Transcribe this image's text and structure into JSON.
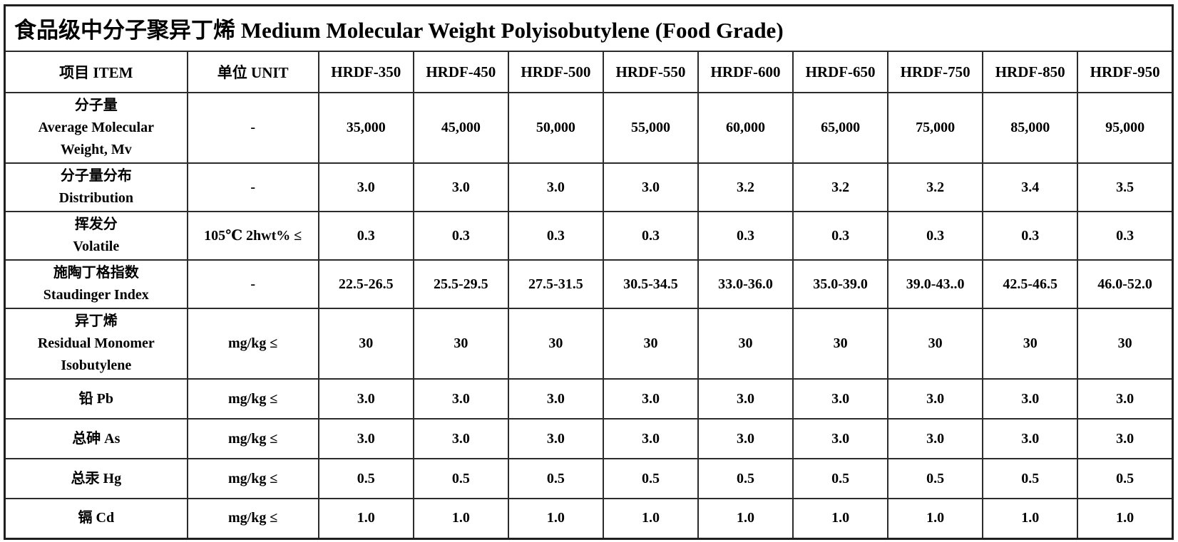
{
  "title": "食品级中分子聚异丁烯 Medium Molecular Weight Polyisobutylene (Food Grade)",
  "table": {
    "columns": [
      "项目 ITEM",
      "单位  UNIT",
      "HRDF-350",
      "HRDF-450",
      "HRDF-500",
      "HRDF-550",
      "HRDF-600",
      "HRDF-650",
      "HRDF-750",
      "HRDF-850",
      "HRDF-950"
    ],
    "rows": [
      {
        "item_lines": [
          "分子量",
          "Average Molecular",
          "Weight, Mv"
        ],
        "unit": "-",
        "values": [
          "35,000",
          "45,000",
          "50,000",
          "55,000",
          "60,000",
          "65,000",
          "75,000",
          "85,000",
          "95,000"
        ]
      },
      {
        "item_lines": [
          "分子量分布",
          "Distribution"
        ],
        "unit": "-",
        "values": [
          "3.0",
          "3.0",
          "3.0",
          "3.0",
          "3.2",
          "3.2",
          "3.2",
          "3.4",
          "3.5"
        ]
      },
      {
        "item_lines": [
          "挥发分",
          "Volatile"
        ],
        "unit": "105℃ 2hwt% ≤",
        "values": [
          "0.3",
          "0.3",
          "0.3",
          "0.3",
          "0.3",
          "0.3",
          "0.3",
          "0.3",
          "0.3"
        ]
      },
      {
        "item_lines": [
          "施陶丁格指数",
          "Staudinger Index"
        ],
        "unit": "-",
        "values": [
          "22.5-26.5",
          "25.5-29.5",
          "27.5-31.5",
          "30.5-34.5",
          "33.0-36.0",
          "35.0-39.0",
          "39.0-43..0",
          "42.5-46.5",
          "46.0-52.0"
        ]
      },
      {
        "item_lines": [
          "异丁烯",
          "Residual Monomer",
          "Isobutylene"
        ],
        "unit": "mg/kg ≤",
        "values": [
          "30",
          "30",
          "30",
          "30",
          "30",
          "30",
          "30",
          "30",
          "30"
        ]
      },
      {
        "item_lines": [
          "铅 Pb"
        ],
        "unit": "mg/kg ≤",
        "values": [
          "3.0",
          "3.0",
          "3.0",
          "3.0",
          "3.0",
          "3.0",
          "3.0",
          "3.0",
          "3.0"
        ]
      },
      {
        "item_lines": [
          "总砷 As"
        ],
        "unit": "mg/kg ≤",
        "values": [
          "3.0",
          "3.0",
          "3.0",
          "3.0",
          "3.0",
          "3.0",
          "3.0",
          "3.0",
          "3.0"
        ]
      },
      {
        "item_lines": [
          "总汞 Hg"
        ],
        "unit": "mg/kg ≤",
        "values": [
          "0.5",
          "0.5",
          "0.5",
          "0.5",
          "0.5",
          "0.5",
          "0.5",
          "0.5",
          "0.5"
        ]
      },
      {
        "item_lines": [
          "镉 Cd"
        ],
        "unit": "mg/kg ≤",
        "values": [
          "1.0",
          "1.0",
          "1.0",
          "1.0",
          "1.0",
          "1.0",
          "1.0",
          "1.0",
          "1.0"
        ]
      }
    ]
  }
}
